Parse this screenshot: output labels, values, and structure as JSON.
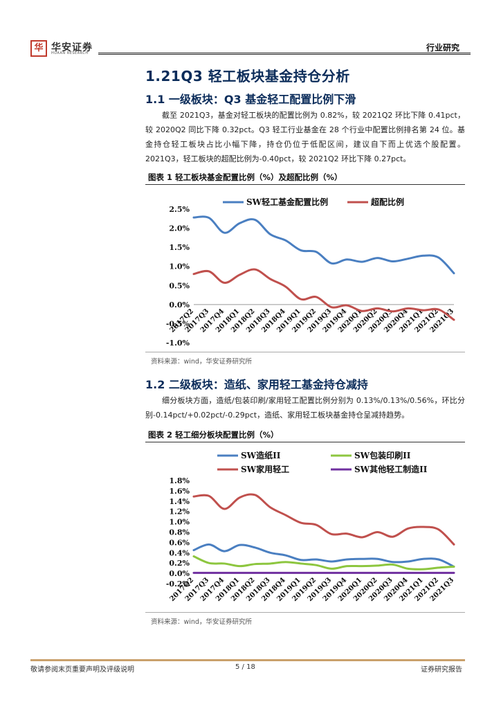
{
  "header": {
    "logo_mark": "华",
    "logo_name": "华安证券",
    "logo_sub": "HUAAN RESEARCH",
    "tag": "行业研究"
  },
  "h1": "1.21Q3 轻工板块基金持仓分析",
  "sec1": {
    "heading": "1.1 一级板块：Q3 基金轻工配置比例下滑",
    "para": "截至 2021Q3，基金对轻工板块的配置比例为 0.82%，较 2021Q2 环比下降 0.41pct，较 2020Q2 同比下降 0.32pct。Q3 轻工行业基金在 28 个行业中配置比例排名第 24 位。基金持仓轻工板块占比小幅下降，持仓仍位于低配区间，建议自下而上优选个股配置。 2021Q3，轻工板块的超配比例为-0.40pct，较 2021Q2 环比下降 0.27pct。",
    "fig_title": "图表 1  轻工板块基金配置比例（%）及超配比例（%）",
    "source": "资料来源：wind，华安证券研究所"
  },
  "sec2": {
    "heading": "1.2 二级板块：造纸、家用轻工基金持仓减持",
    "para": "细分板块方面，造纸/包装印刷/家用轻工配置比例分别为 0.13%/0.13%/0.56%，环比分别-0.14pct/+0.02pct/-0.29pct，造纸、家用轻工板块基金持仓呈减持趋势。",
    "fig_title": "图表 2  轻工细分板块配置比例（%）",
    "source": "资料来源：wind，华安证券研究所"
  },
  "footer": {
    "left": "敬请参阅末页重要声明及评级说明",
    "page": "5 / 18",
    "right": "证券研究报告"
  },
  "chart_data": [
    {
      "type": "line",
      "categories": [
        "2017Q2",
        "2017Q3",
        "2017Q4",
        "2018Q1",
        "2018Q2",
        "2018Q3",
        "2018Q4",
        "2019Q1",
        "2019Q2",
        "2019Q3",
        "2019Q4",
        "2020Q1",
        "2020Q2",
        "2020Q3",
        "2020Q4",
        "2021Q1",
        "2021Q2",
        "2021Q3"
      ],
      "series": [
        {
          "name": "SW轻工基金配置比例",
          "color": "#4a7fc1",
          "values": [
            2.28,
            2.27,
            1.88,
            2.13,
            2.22,
            1.84,
            1.68,
            1.42,
            1.38,
            1.08,
            1.18,
            1.12,
            1.22,
            1.13,
            1.2,
            1.28,
            1.23,
            0.82
          ]
        },
        {
          "name": "超配比例",
          "color": "#c0504d",
          "values": [
            0.8,
            0.87,
            0.57,
            0.78,
            0.92,
            0.67,
            0.47,
            0.14,
            0.2,
            -0.07,
            -0.02,
            -0.17,
            -0.1,
            -0.18,
            -0.1,
            -0.15,
            -0.13,
            -0.4
          ]
        }
      ],
      "yticks": [
        "2.5%",
        "2.0%",
        "1.5%",
        "1.0%",
        "0.5%",
        "0.0%",
        "-0.5%",
        "-1.0%"
      ],
      "ylim": [
        -1.0,
        2.5
      ],
      "legend": "top"
    },
    {
      "type": "line",
      "categories": [
        "2017Q2",
        "2017Q3",
        "2017Q4",
        "2018Q1",
        "2018Q2",
        "2018Q3",
        "2018Q4",
        "2019Q1",
        "2019Q2",
        "2019Q3",
        "2019Q4",
        "2020Q1",
        "2020Q2",
        "2020Q3",
        "2020Q4",
        "2021Q1",
        "2021Q2",
        "2021Q3"
      ],
      "series": [
        {
          "name": "SW造纸II",
          "color": "#4a7fc1",
          "values": [
            0.45,
            0.56,
            0.43,
            0.55,
            0.5,
            0.4,
            0.35,
            0.26,
            0.27,
            0.23,
            0.27,
            0.28,
            0.28,
            0.22,
            0.23,
            0.28,
            0.27,
            0.13
          ]
        },
        {
          "name": "SW包装印刷II",
          "color": "#8dc63f",
          "values": [
            0.33,
            0.2,
            0.19,
            0.14,
            0.18,
            0.19,
            0.22,
            0.19,
            0.16,
            0.09,
            0.14,
            0.14,
            0.15,
            0.17,
            0.09,
            0.08,
            0.11,
            0.13
          ]
        },
        {
          "name": "SW家用轻工",
          "color": "#c0504d",
          "values": [
            1.49,
            1.5,
            1.25,
            1.47,
            1.52,
            1.28,
            1.13,
            0.98,
            0.94,
            0.76,
            0.77,
            0.7,
            0.8,
            0.71,
            0.87,
            0.9,
            0.85,
            0.56
          ]
        },
        {
          "name": "SW其他轻工制造II",
          "color": "#7030a0",
          "values": [
            0.01,
            0.01,
            0.01,
            0.01,
            0.01,
            0.01,
            0.01,
            0.01,
            0.01,
            0.01,
            0.01,
            0.01,
            0.01,
            0.01,
            0.01,
            0.01,
            0.01,
            0.01
          ]
        }
      ],
      "yticks": [
        "1.8%",
        "1.6%",
        "1.4%",
        "1.2%",
        "1.0%",
        "0.8%",
        "0.6%",
        "0.4%",
        "0.2%",
        "0.0%",
        "-0.2%"
      ],
      "ylim": [
        -0.2,
        1.8
      ],
      "legend": "top"
    }
  ]
}
